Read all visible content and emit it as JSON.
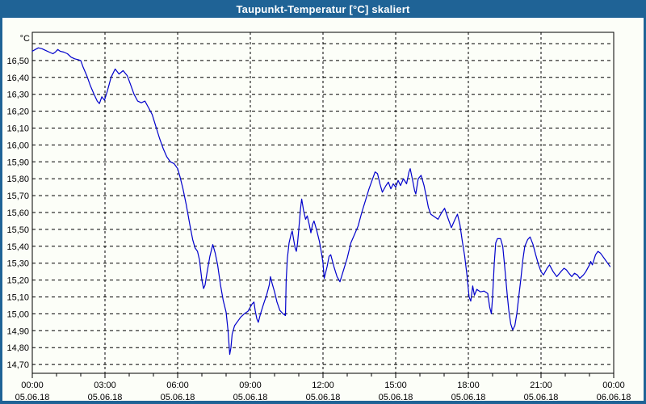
{
  "window": {
    "title": "Taupunkt-Temperatur [°C] skaliert",
    "colors": {
      "title_bar": "#1F6396",
      "title_text": "#FFFFFF",
      "background": "#FCFEF8",
      "border": "#1F6396",
      "line": "#0000CC",
      "grid": "#000000",
      "axis": "#000000"
    }
  },
  "chart_data": {
    "type": "line",
    "title": "Taupunkt-Temperatur [°C] skaliert",
    "y_unit_label": "°C",
    "ylabel": "",
    "xlabel": "",
    "grid": "dashed",
    "legend_position": "none",
    "ylim": [
      14.65,
      16.67
    ],
    "xlim_hours": [
      0,
      24
    ],
    "y_ticks": [
      {
        "v": 16.6,
        "label": ""
      },
      {
        "v": 16.5,
        "label": "16,50"
      },
      {
        "v": 16.4,
        "label": "16,40"
      },
      {
        "v": 16.3,
        "label": "16,30"
      },
      {
        "v": 16.2,
        "label": "16,20"
      },
      {
        "v": 16.1,
        "label": "16,10"
      },
      {
        "v": 16.0,
        "label": "16,00"
      },
      {
        "v": 15.9,
        "label": "15,90"
      },
      {
        "v": 15.8,
        "label": "15,80"
      },
      {
        "v": 15.7,
        "label": "15,70"
      },
      {
        "v": 15.6,
        "label": "15,60"
      },
      {
        "v": 15.5,
        "label": "15,50"
      },
      {
        "v": 15.4,
        "label": "15,40"
      },
      {
        "v": 15.3,
        "label": "15,30"
      },
      {
        "v": 15.2,
        "label": "15,20"
      },
      {
        "v": 15.1,
        "label": "15,10"
      },
      {
        "v": 15.0,
        "label": "15,00"
      },
      {
        "v": 14.9,
        "label": "14,90"
      },
      {
        "v": 14.8,
        "label": "14,80"
      },
      {
        "v": 14.7,
        "label": "14,70"
      }
    ],
    "x_ticks": [
      {
        "hour": 0,
        "time": "00:00",
        "date": "05.06.18"
      },
      {
        "hour": 3,
        "time": "03:00",
        "date": "05.06.18"
      },
      {
        "hour": 6,
        "time": "06:00",
        "date": "05.06.18"
      },
      {
        "hour": 9,
        "time": "09:00",
        "date": "05.06.18"
      },
      {
        "hour": 12,
        "time": "12:00",
        "date": "05.06.18"
      },
      {
        "hour": 15,
        "time": "15:00",
        "date": "05.06.18"
      },
      {
        "hour": 18,
        "time": "18:00",
        "date": "05.06.18"
      },
      {
        "hour": 21,
        "time": "21:00",
        "date": "05.06.18"
      },
      {
        "hour": 24,
        "time": "00:00",
        "date": "06.06.18"
      }
    ],
    "minor_tick_every_hours": 1,
    "series": [
      {
        "name": "Taupunkt-Temperatur [°C] skaliert",
        "points": [
          [
            0.0,
            16.555
          ],
          [
            0.12,
            16.565
          ],
          [
            0.25,
            16.575
          ],
          [
            0.4,
            16.57
          ],
          [
            0.55,
            16.56
          ],
          [
            0.7,
            16.55
          ],
          [
            0.85,
            16.54
          ],
          [
            0.95,
            16.55
          ],
          [
            1.05,
            16.565
          ],
          [
            1.15,
            16.555
          ],
          [
            1.3,
            16.55
          ],
          [
            1.45,
            16.54
          ],
          [
            1.6,
            16.52
          ],
          [
            1.75,
            16.51
          ],
          [
            1.9,
            16.505
          ],
          [
            2.0,
            16.5
          ],
          [
            2.1,
            16.46
          ],
          [
            2.25,
            16.41
          ],
          [
            2.4,
            16.35
          ],
          [
            2.55,
            16.3
          ],
          [
            2.68,
            16.26
          ],
          [
            2.77,
            16.245
          ],
          [
            2.87,
            16.285
          ],
          [
            2.98,
            16.265
          ],
          [
            3.1,
            16.32
          ],
          [
            3.25,
            16.4
          ],
          [
            3.42,
            16.45
          ],
          [
            3.58,
            16.42
          ],
          [
            3.75,
            16.44
          ],
          [
            3.92,
            16.41
          ],
          [
            4.05,
            16.36
          ],
          [
            4.2,
            16.3
          ],
          [
            4.35,
            16.26
          ],
          [
            4.5,
            16.25
          ],
          [
            4.65,
            16.26
          ],
          [
            4.8,
            16.22
          ],
          [
            4.95,
            16.18
          ],
          [
            5.1,
            16.11
          ],
          [
            5.25,
            16.04
          ],
          [
            5.4,
            15.98
          ],
          [
            5.55,
            15.93
          ],
          [
            5.7,
            15.9
          ],
          [
            5.85,
            15.89
          ],
          [
            6.0,
            15.86
          ],
          [
            6.1,
            15.81
          ],
          [
            6.22,
            15.74
          ],
          [
            6.35,
            15.65
          ],
          [
            6.5,
            15.53
          ],
          [
            6.62,
            15.44
          ],
          [
            6.72,
            15.39
          ],
          [
            6.82,
            15.37
          ],
          [
            6.9,
            15.32
          ],
          [
            7.0,
            15.2
          ],
          [
            7.07,
            15.15
          ],
          [
            7.13,
            15.17
          ],
          [
            7.22,
            15.25
          ],
          [
            7.33,
            15.34
          ],
          [
            7.45,
            15.41
          ],
          [
            7.55,
            15.36
          ],
          [
            7.65,
            15.29
          ],
          [
            7.77,
            15.17
          ],
          [
            7.88,
            15.08
          ],
          [
            8.0,
            15.01
          ],
          [
            8.08,
            14.9
          ],
          [
            8.15,
            14.76
          ],
          [
            8.2,
            14.8
          ],
          [
            8.25,
            14.88
          ],
          [
            8.35,
            14.93
          ],
          [
            8.5,
            14.96
          ],
          [
            8.6,
            14.98
          ],
          [
            8.75,
            15.0
          ],
          [
            8.9,
            15.015
          ],
          [
            9.0,
            15.04
          ],
          [
            9.08,
            15.06
          ],
          [
            9.15,
            15.07
          ],
          [
            9.2,
            15.02
          ],
          [
            9.27,
            14.97
          ],
          [
            9.33,
            14.95
          ],
          [
            9.42,
            15.0
          ],
          [
            9.55,
            15.06
          ],
          [
            9.67,
            15.11
          ],
          [
            9.78,
            15.17
          ],
          [
            9.83,
            15.22
          ],
          [
            9.9,
            15.18
          ],
          [
            10.0,
            15.13
          ],
          [
            10.1,
            15.07
          ],
          [
            10.22,
            15.02
          ],
          [
            10.35,
            15.0
          ],
          [
            10.45,
            14.99
          ],
          [
            10.48,
            15.2
          ],
          [
            10.53,
            15.33
          ],
          [
            10.6,
            15.42
          ],
          [
            10.68,
            15.47
          ],
          [
            10.73,
            15.49
          ],
          [
            10.8,
            15.43
          ],
          [
            10.85,
            15.39
          ],
          [
            10.9,
            15.37
          ],
          [
            10.95,
            15.42
          ],
          [
            11.0,
            15.5
          ],
          [
            11.07,
            15.62
          ],
          [
            11.12,
            15.68
          ],
          [
            11.2,
            15.61
          ],
          [
            11.28,
            15.56
          ],
          [
            11.35,
            15.58
          ],
          [
            11.43,
            15.53
          ],
          [
            11.5,
            15.48
          ],
          [
            11.57,
            15.53
          ],
          [
            11.63,
            15.55
          ],
          [
            11.73,
            15.5
          ],
          [
            11.85,
            15.43
          ],
          [
            11.95,
            15.35
          ],
          [
            12.0,
            15.3
          ],
          [
            12.05,
            15.21
          ],
          [
            12.17,
            15.28
          ],
          [
            12.25,
            15.34
          ],
          [
            12.32,
            15.35
          ],
          [
            12.45,
            15.28
          ],
          [
            12.58,
            15.22
          ],
          [
            12.7,
            15.19
          ],
          [
            12.85,
            15.26
          ],
          [
            13.0,
            15.33
          ],
          [
            13.15,
            15.42
          ],
          [
            13.3,
            15.47
          ],
          [
            13.45,
            15.52
          ],
          [
            13.6,
            15.6
          ],
          [
            13.75,
            15.67
          ],
          [
            13.9,
            15.74
          ],
          [
            14.05,
            15.8
          ],
          [
            14.15,
            15.84
          ],
          [
            14.25,
            15.83
          ],
          [
            14.35,
            15.77
          ],
          [
            14.45,
            15.72
          ],
          [
            14.6,
            15.76
          ],
          [
            14.7,
            15.78
          ],
          [
            14.8,
            15.74
          ],
          [
            14.9,
            15.77
          ],
          [
            15.0,
            15.75
          ],
          [
            15.1,
            15.79
          ],
          [
            15.2,
            15.76
          ],
          [
            15.32,
            15.8
          ],
          [
            15.45,
            15.77
          ],
          [
            15.55,
            15.84
          ],
          [
            15.6,
            15.86
          ],
          [
            15.7,
            15.79
          ],
          [
            15.78,
            15.73
          ],
          [
            15.83,
            15.71
          ],
          [
            15.93,
            15.8
          ],
          [
            16.05,
            15.82
          ],
          [
            16.17,
            15.76
          ],
          [
            16.27,
            15.69
          ],
          [
            16.35,
            15.63
          ],
          [
            16.45,
            15.59
          ],
          [
            16.6,
            15.575
          ],
          [
            16.75,
            15.56
          ],
          [
            16.9,
            15.6
          ],
          [
            17.02,
            15.625
          ],
          [
            17.15,
            15.57
          ],
          [
            17.3,
            15.51
          ],
          [
            17.45,
            15.56
          ],
          [
            17.55,
            15.59
          ],
          [
            17.65,
            15.53
          ],
          [
            17.75,
            15.43
          ],
          [
            17.85,
            15.34
          ],
          [
            17.95,
            15.22
          ],
          [
            18.03,
            15.1
          ],
          [
            18.1,
            15.075
          ],
          [
            18.18,
            15.165
          ],
          [
            18.25,
            15.11
          ],
          [
            18.35,
            15.145
          ],
          [
            18.5,
            15.13
          ],
          [
            18.65,
            15.135
          ],
          [
            18.8,
            15.12
          ],
          [
            18.88,
            15.04
          ],
          [
            18.95,
            15.0
          ],
          [
            19.0,
            15.1
          ],
          [
            19.07,
            15.3
          ],
          [
            19.13,
            15.42
          ],
          [
            19.2,
            15.445
          ],
          [
            19.33,
            15.445
          ],
          [
            19.42,
            15.4
          ],
          [
            19.5,
            15.28
          ],
          [
            19.6,
            15.12
          ],
          [
            19.67,
            15.02
          ],
          [
            19.75,
            14.94
          ],
          [
            19.83,
            14.905
          ],
          [
            19.92,
            14.93
          ],
          [
            20.0,
            15.0
          ],
          [
            20.08,
            15.1
          ],
          [
            20.17,
            15.21
          ],
          [
            20.25,
            15.32
          ],
          [
            20.33,
            15.4
          ],
          [
            20.45,
            15.44
          ],
          [
            20.55,
            15.455
          ],
          [
            20.67,
            15.41
          ],
          [
            20.78,
            15.35
          ],
          [
            20.9,
            15.29
          ],
          [
            21.0,
            15.25
          ],
          [
            21.1,
            15.23
          ],
          [
            21.25,
            15.27
          ],
          [
            21.35,
            15.29
          ],
          [
            21.5,
            15.25
          ],
          [
            21.65,
            15.22
          ],
          [
            21.82,
            15.25
          ],
          [
            21.95,
            15.27
          ],
          [
            22.05,
            15.26
          ],
          [
            22.15,
            15.24
          ],
          [
            22.27,
            15.22
          ],
          [
            22.38,
            15.24
          ],
          [
            22.5,
            15.23
          ],
          [
            22.6,
            15.21
          ],
          [
            22.75,
            15.23
          ],
          [
            22.85,
            15.25
          ],
          [
            23.0,
            15.29
          ],
          [
            23.05,
            15.31
          ],
          [
            23.12,
            15.29
          ],
          [
            23.25,
            15.35
          ],
          [
            23.35,
            15.37
          ],
          [
            23.45,
            15.36
          ],
          [
            23.55,
            15.34
          ],
          [
            23.65,
            15.32
          ],
          [
            23.75,
            15.3
          ],
          [
            23.85,
            15.28
          ]
        ]
      }
    ]
  }
}
